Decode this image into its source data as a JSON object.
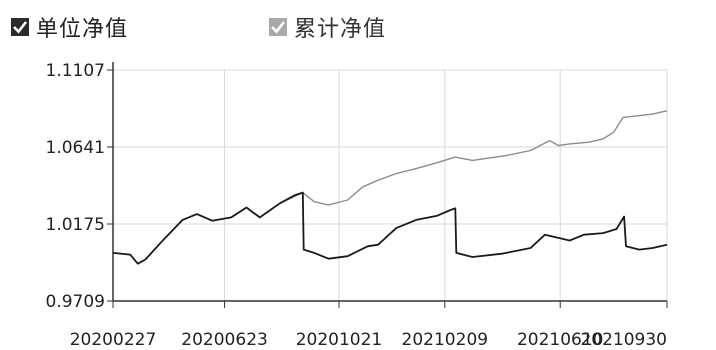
{
  "legend": {
    "items": [
      {
        "label": "单位净值",
        "checked": true,
        "color": "#1a1a1a",
        "box_color": "#2b2b2b"
      },
      {
        "label": "累计净值",
        "checked": true,
        "color": "#8c8c8c",
        "box_color": "#a9a9a9"
      }
    ]
  },
  "chart_data": {
    "type": "line",
    "grid": true,
    "x_ticks": [
      "20200227",
      "20200623",
      "20201021",
      "20210209",
      "20210610",
      "20210930"
    ],
    "y_ticks": [
      "1.1107",
      "1.0641",
      "1.0175",
      "0.9709"
    ],
    "xlim": [
      "20200227",
      "20210930"
    ],
    "ylim": [
      0.9709,
      1.1107
    ],
    "series": [
      {
        "name": "单位净值",
        "color": "#1a1a1a",
        "points": [
          [
            "20200227",
            1.0
          ],
          [
            "20200316",
            0.999
          ],
          [
            "20200324",
            0.9935
          ],
          [
            "20200401",
            0.996
          ],
          [
            "20200420",
            1.008
          ],
          [
            "20200510",
            1.02
          ],
          [
            "20200525",
            1.0235
          ],
          [
            "20200610",
            1.0195
          ],
          [
            "20200630",
            1.0215
          ],
          [
            "20200716",
            1.0275
          ],
          [
            "20200730",
            1.0215
          ],
          [
            "20200820",
            1.03
          ],
          [
            "20200905",
            1.035
          ],
          [
            "20200913",
            1.0365
          ],
          [
            "20200914",
            1.002
          ],
          [
            "20200925",
            1.0
          ],
          [
            "20201010",
            0.9965
          ],
          [
            "20201030",
            0.998
          ],
          [
            "20201120",
            1.004
          ],
          [
            "20201201",
            1.005
          ],
          [
            "20201220",
            1.015
          ],
          [
            "20210110",
            1.02
          ],
          [
            "20210201",
            1.0225
          ],
          [
            "20210215",
            1.026
          ],
          [
            "20210220",
            1.027
          ],
          [
            "20210221",
            1.0
          ],
          [
            "20210310",
            0.9975
          ],
          [
            "20210410",
            0.9995
          ],
          [
            "20210510",
            1.003
          ],
          [
            "20210525",
            1.011
          ],
          [
            "20210620",
            1.0075
          ],
          [
            "20210705",
            1.011
          ],
          [
            "20210725",
            1.012
          ],
          [
            "20210808",
            1.0145
          ],
          [
            "20210816",
            1.022
          ],
          [
            "20210818",
            1.004
          ],
          [
            "20210901",
            1.002
          ],
          [
            "20210915",
            1.003
          ],
          [
            "20210930",
            1.005
          ]
        ]
      },
      {
        "name": "累计净值",
        "color": "#8c8c8c",
        "points": [
          [
            "20200227",
            1.0
          ],
          [
            "20200316",
            0.999
          ],
          [
            "20200324",
            0.9935
          ],
          [
            "20200401",
            0.996
          ],
          [
            "20200420",
            1.008
          ],
          [
            "20200510",
            1.02
          ],
          [
            "20200525",
            1.0235
          ],
          [
            "20200610",
            1.0195
          ],
          [
            "20200630",
            1.0215
          ],
          [
            "20200716",
            1.0275
          ],
          [
            "20200730",
            1.0215
          ],
          [
            "20200820",
            1.03
          ],
          [
            "20200913",
            1.0365
          ],
          [
            "20200925",
            1.031
          ],
          [
            "20201010",
            1.029
          ],
          [
            "20201030",
            1.032
          ],
          [
            "20201115",
            1.04
          ],
          [
            "20201201",
            1.044
          ],
          [
            "20201220",
            1.048
          ],
          [
            "20210110",
            1.051
          ],
          [
            "20210131",
            1.0545
          ],
          [
            "20210220",
            1.058
          ],
          [
            "20210310",
            1.056
          ],
          [
            "20210415",
            1.059
          ],
          [
            "20210510",
            1.062
          ],
          [
            "20210530",
            1.068
          ],
          [
            "20210608",
            1.065
          ],
          [
            "20210620",
            1.066
          ],
          [
            "20210710",
            1.067
          ],
          [
            "20210725",
            1.069
          ],
          [
            "20210805",
            1.073
          ],
          [
            "20210815",
            1.082
          ],
          [
            "20210830",
            1.083
          ],
          [
            "20210915",
            1.084
          ],
          [
            "20210930",
            1.086
          ]
        ]
      }
    ]
  }
}
